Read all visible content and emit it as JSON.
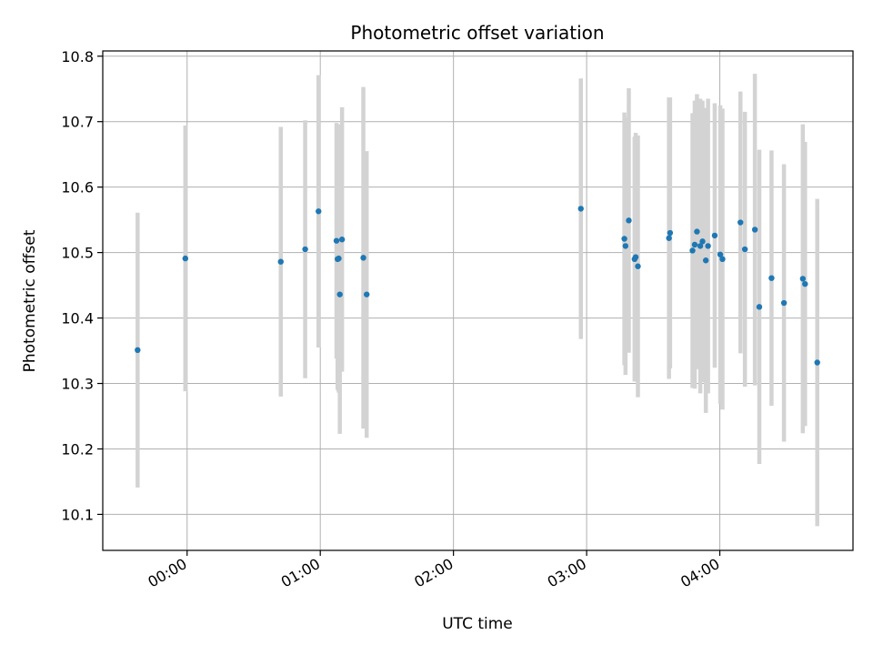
{
  "chart_data": {
    "type": "scatter",
    "title": "Photometric offset variation",
    "xlabel": "UTC time",
    "ylabel": "Photometric offset",
    "x_units": "minutes after 00:00 UTC",
    "xlim": [
      -38,
      300
    ],
    "ylim": [
      10.045,
      10.808
    ],
    "x_ticks": [
      {
        "value": 0,
        "label": "00:00"
      },
      {
        "value": 60,
        "label": "01:00"
      },
      {
        "value": 120,
        "label": "02:00"
      },
      {
        "value": 180,
        "label": "03:00"
      },
      {
        "value": 240,
        "label": "04:00"
      }
    ],
    "y_ticks": [
      10.1,
      10.2,
      10.3,
      10.4,
      10.5,
      10.6,
      10.7,
      10.8
    ],
    "grid": true,
    "point_color": "#1f77b4",
    "errorbar_color": "#d3d3d3",
    "points": [
      {
        "x": -22.3,
        "y": 10.351,
        "yerr": 0.21
      },
      {
        "x": -0.8,
        "y": 10.491,
        "yerr": 0.203
      },
      {
        "x": 42.2,
        "y": 10.486,
        "yerr": 0.206
      },
      {
        "x": 53.2,
        "y": 10.505,
        "yerr": 0.197
      },
      {
        "x": 59.2,
        "y": 10.563,
        "yerr": 0.208
      },
      {
        "x": 67.3,
        "y": 10.518,
        "yerr": 0.18
      },
      {
        "x": 67.8,
        "y": 10.49,
        "yerr": 0.2
      },
      {
        "x": 68.3,
        "y": 10.491,
        "yerr": 0.205
      },
      {
        "x": 68.8,
        "y": 10.436,
        "yerr": 0.213
      },
      {
        "x": 69.8,
        "y": 10.52,
        "yerr": 0.202
      },
      {
        "x": 79.4,
        "y": 10.492,
        "yerr": 0.261
      },
      {
        "x": 80.9,
        "y": 10.436,
        "yerr": 0.219
      },
      {
        "x": 177.4,
        "y": 10.567,
        "yerr": 0.199
      },
      {
        "x": 197.0,
        "y": 10.521,
        "yerr": 0.193
      },
      {
        "x": 197.5,
        "y": 10.51,
        "yerr": 0.197
      },
      {
        "x": 199.0,
        "y": 10.549,
        "yerr": 0.202
      },
      {
        "x": 201.6,
        "y": 10.49,
        "yerr": 0.187
      },
      {
        "x": 202.1,
        "y": 10.493,
        "yerr": 0.19
      },
      {
        "x": 203.1,
        "y": 10.479,
        "yerr": 0.2
      },
      {
        "x": 217.1,
        "y": 10.522,
        "yerr": 0.215
      },
      {
        "x": 217.6,
        "y": 10.53,
        "yerr": 0.207
      },
      {
        "x": 227.7,
        "y": 10.503,
        "yerr": 0.21
      },
      {
        "x": 228.7,
        "y": 10.512,
        "yerr": 0.22
      },
      {
        "x": 229.7,
        "y": 10.532,
        "yerr": 0.21
      },
      {
        "x": 231.2,
        "y": 10.51,
        "yerr": 0.225
      },
      {
        "x": 232.2,
        "y": 10.517,
        "yerr": 0.215
      },
      {
        "x": 233.7,
        "y": 10.488,
        "yerr": 0.233
      },
      {
        "x": 234.7,
        "y": 10.51,
        "yerr": 0.225
      },
      {
        "x": 237.7,
        "y": 10.526,
        "yerr": 0.202
      },
      {
        "x": 240.2,
        "y": 10.497,
        "yerr": 0.228
      },
      {
        "x": 241.2,
        "y": 10.49,
        "yerr": 0.23
      },
      {
        "x": 249.3,
        "y": 10.546,
        "yerr": 0.2
      },
      {
        "x": 251.3,
        "y": 10.505,
        "yerr": 0.21
      },
      {
        "x": 255.8,
        "y": 10.535,
        "yerr": 0.238
      },
      {
        "x": 257.8,
        "y": 10.417,
        "yerr": 0.24
      },
      {
        "x": 263.3,
        "y": 10.461,
        "yerr": 0.195
      },
      {
        "x": 268.9,
        "y": 10.423,
        "yerr": 0.212
      },
      {
        "x": 277.4,
        "y": 10.46,
        "yerr": 0.236
      },
      {
        "x": 278.4,
        "y": 10.452,
        "yerr": 0.217
      },
      {
        "x": 283.9,
        "y": 10.332,
        "yerr": 0.25
      }
    ]
  }
}
